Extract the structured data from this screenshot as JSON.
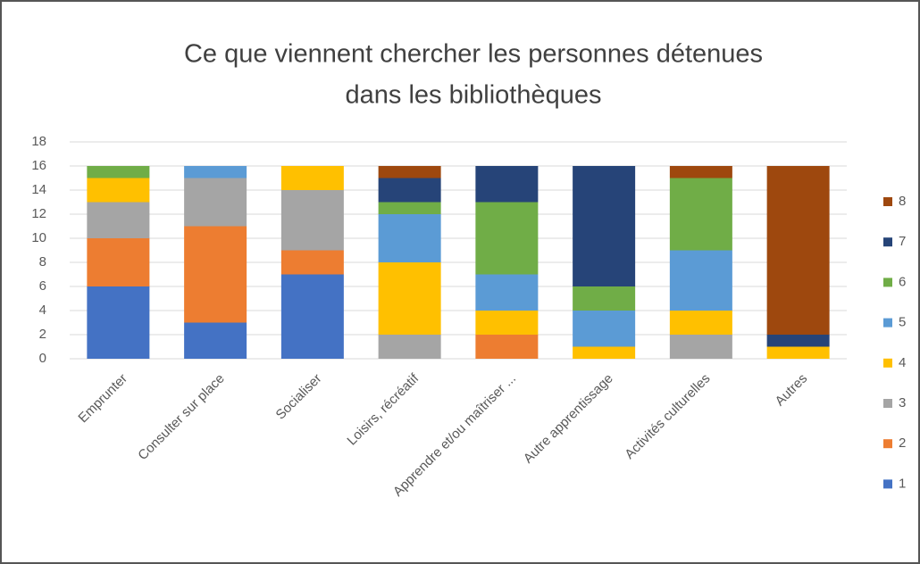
{
  "chart_data": {
    "type": "stacked_bar",
    "title": [
      "Ce que viennent chercher les personnes détenues",
      "dans les bibliothèques"
    ],
    "categories": [
      "Emprunter",
      "Consulter sur place",
      "Socialiser",
      "Loisirs, récréatif",
      "Apprendre et/ou maîtriser ...",
      "Autre apprentissage",
      "Activités culturelles",
      "Autres"
    ],
    "series": [
      {
        "name": "1",
        "color": "#4472c4",
        "values": [
          6,
          3,
          7,
          0,
          0,
          0,
          0,
          0
        ]
      },
      {
        "name": "2",
        "color": "#ed7d31",
        "values": [
          4,
          8,
          2,
          0,
          2,
          0,
          0,
          0
        ]
      },
      {
        "name": "3",
        "color": "#a5a5a5",
        "values": [
          3,
          4,
          5,
          2,
          0,
          0,
          2,
          0
        ]
      },
      {
        "name": "4",
        "color": "#ffc000",
        "values": [
          2,
          0,
          2,
          6,
          2,
          1,
          2,
          1
        ]
      },
      {
        "name": "5",
        "color": "#5b9bd5",
        "values": [
          0,
          1,
          0,
          4,
          3,
          3,
          5,
          0
        ]
      },
      {
        "name": "6",
        "color": "#70ad47",
        "values": [
          1,
          0,
          0,
          1,
          6,
          2,
          6,
          0
        ]
      },
      {
        "name": "7",
        "color": "#264478",
        "values": [
          0,
          0,
          0,
          2,
          3,
          10,
          0,
          1
        ]
      },
      {
        "name": "8",
        "color": "#9e480e",
        "values": [
          0,
          0,
          0,
          1,
          0,
          0,
          1,
          14
        ]
      }
    ],
    "ylim": [
      0,
      18
    ],
    "yticks": [
      0,
      2,
      4,
      6,
      8,
      10,
      12,
      14,
      16,
      18
    ],
    "grid": true,
    "legend": "right"
  }
}
